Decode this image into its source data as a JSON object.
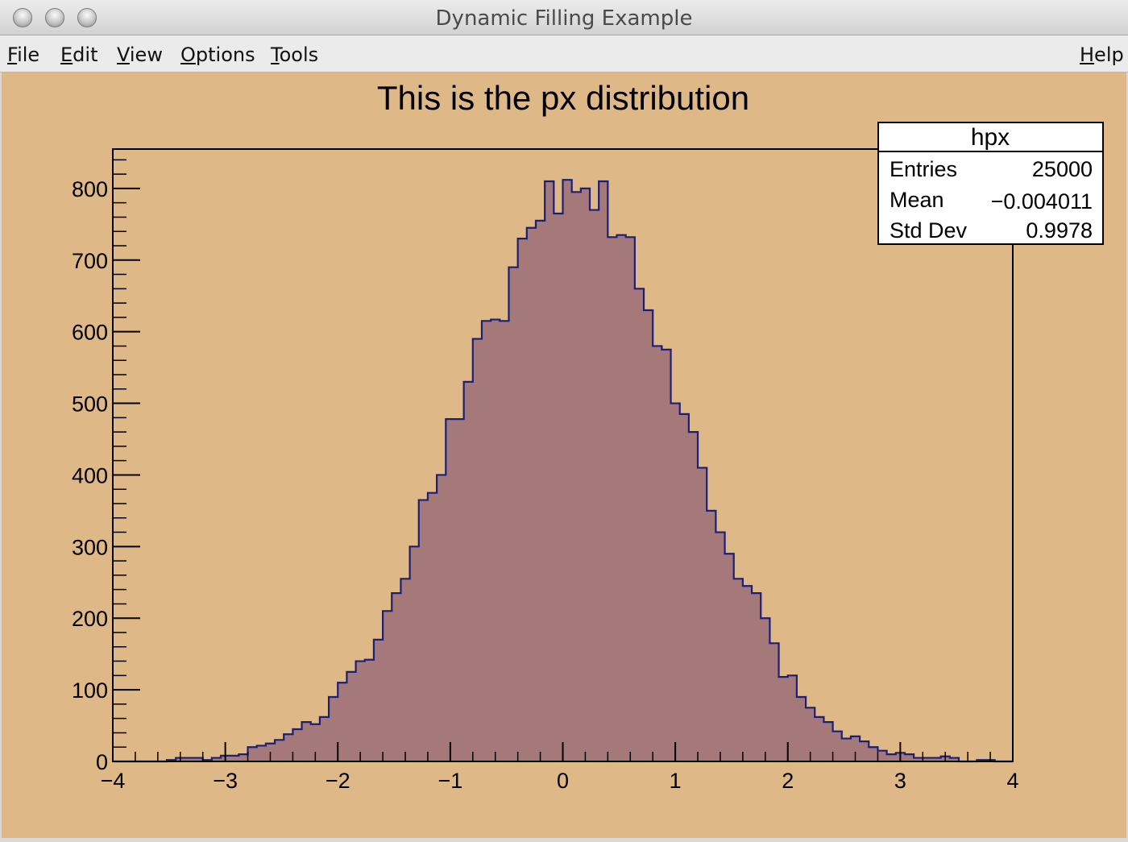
{
  "window": {
    "title": "Dynamic Filling Example"
  },
  "menu": {
    "file": "File",
    "edit": "Edit",
    "view": "View",
    "options": "Options",
    "tools": "Tools",
    "help": "Help"
  },
  "colors": {
    "canvas_bg": "#dfb888",
    "fill": "#a5787a",
    "line": "#1a1f7a"
  },
  "stats": {
    "name": "hpx",
    "entries_label": "Entries",
    "entries_value": "25000",
    "mean_label": "Mean",
    "mean_value": "−0.004011",
    "stddev_label": "Std Dev",
    "stddev_value": "0.9978"
  },
  "chart_data": {
    "type": "bar",
    "title": "This is the px distribution",
    "xlabel": "",
    "ylabel": "",
    "xlim": [
      -4,
      4
    ],
    "ylim": [
      0,
      855
    ],
    "bin_low": -4,
    "bin_width": 0.08,
    "x_ticks": [
      "−4",
      "−3",
      "−2",
      "−1",
      "0",
      "1",
      "2",
      "3",
      "4"
    ],
    "y_ticks": [
      "0",
      "100",
      "200",
      "300",
      "400",
      "500",
      "600",
      "700",
      "800"
    ],
    "values": [
      0,
      0,
      0,
      0,
      0,
      0,
      2,
      5,
      5,
      5,
      2,
      5,
      8,
      8,
      10,
      20,
      22,
      25,
      30,
      38,
      45,
      55,
      52,
      62,
      90,
      110,
      125,
      140,
      142,
      170,
      210,
      235,
      255,
      300,
      365,
      375,
      400,
      478,
      478,
      530,
      590,
      615,
      617,
      615,
      690,
      730,
      745,
      755,
      810,
      765,
      812,
      795,
      800,
      770,
      810,
      732,
      735,
      732,
      660,
      630,
      580,
      575,
      500,
      485,
      460,
      410,
      350,
      320,
      290,
      255,
      245,
      235,
      200,
      165,
      118,
      120,
      90,
      75,
      62,
      55,
      42,
      32,
      35,
      28,
      20,
      15,
      10,
      12,
      10,
      5,
      5,
      5,
      7,
      5,
      0,
      0,
      2,
      2,
      0,
      0
    ]
  }
}
